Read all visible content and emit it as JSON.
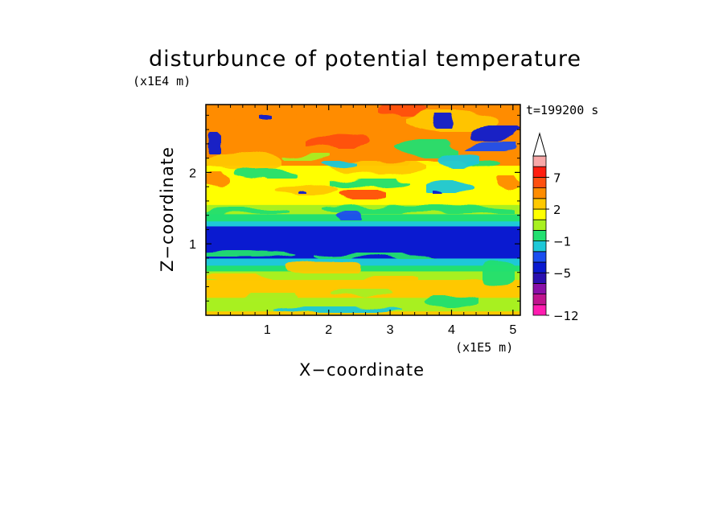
{
  "chart_data": {
    "type": "heatmap",
    "title": "disturbunce of potential temperature",
    "xlabel": "X−coordinate",
    "ylabel": "Z−coordinate",
    "x_unit_label": "(x1E5 m)",
    "y_unit_label": "(x1E4 m)",
    "time_label": "t=199200 s",
    "xlim": [
      0,
      5.12
    ],
    "ylim": [
      0,
      2.95
    ],
    "x_ticks": [
      "1",
      "2",
      "3",
      "4",
      "5"
    ],
    "y_ticks": [
      "1",
      "2"
    ],
    "colorbar": {
      "levels": [
        -12,
        -10,
        -8,
        -6,
        -5,
        -4,
        -3,
        -1,
        0,
        1,
        2,
        3,
        5,
        7,
        9,
        11
      ],
      "labeled_ticks": [
        "−12",
        "−5",
        "−1",
        "2",
        "7"
      ],
      "colors": [
        "#ff1cb0",
        "#c0148e",
        "#8a10a8",
        "#2a10b0",
        "#0a1ad0",
        "#1a4ef0",
        "#1ec8d8",
        "#22e070",
        "#a8f020",
        "#ffff00",
        "#ffc800",
        "#ff8c00",
        "#ff5010",
        "#ff1e10",
        "#f8a8a8"
      ],
      "extend": "max"
    },
    "bands": [
      {
        "z_from": 0.0,
        "z_to": 0.06,
        "value": 2
      },
      {
        "z_from": 0.06,
        "z_to": 0.25,
        "value": 0.5
      },
      {
        "z_from": 0.25,
        "z_to": 0.5,
        "value": 2
      },
      {
        "z_from": 0.5,
        "z_to": 0.62,
        "value": 0.5
      },
      {
        "z_from": 0.62,
        "z_to": 0.7,
        "value": -1
      },
      {
        "z_from": 0.7,
        "z_to": 0.8,
        "value": -3
      },
      {
        "z_from": 0.8,
        "z_to": 1.25,
        "value": -5
      },
      {
        "z_from": 1.25,
        "z_to": 1.32,
        "value": -3
      },
      {
        "z_from": 1.32,
        "z_to": 1.42,
        "value": -1
      },
      {
        "z_from": 1.42,
        "z_to": 1.55,
        "value": 0.5
      },
      {
        "z_from": 1.55,
        "z_to": 2.1,
        "value": 1.5
      },
      {
        "z_from": 2.1,
        "z_to": 2.95,
        "value": 3
      }
    ]
  }
}
